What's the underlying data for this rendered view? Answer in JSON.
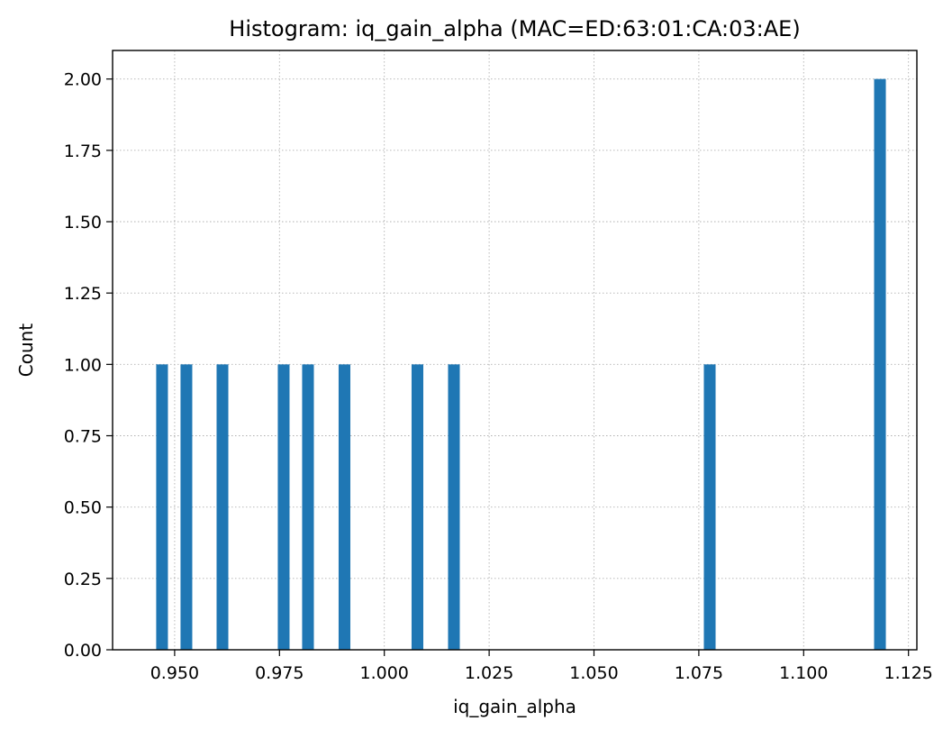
{
  "chart_data": {
    "type": "bar",
    "subtype": "histogram",
    "title": "Histogram: iq_gain_alpha (MAC=ED:63:01:CA:03:AE)",
    "xlabel": "iq_gain_alpha",
    "ylabel": "Count",
    "xlim": [
      0.9352,
      1.127
    ],
    "ylim": [
      0,
      2.1
    ],
    "xticks": [
      0.95,
      0.975,
      1.0,
      1.025,
      1.05,
      1.075,
      1.1,
      1.125
    ],
    "xtick_labels": [
      "0.950",
      "0.975",
      "1.000",
      "1.025",
      "1.050",
      "1.075",
      "1.100",
      "1.125"
    ],
    "yticks": [
      0,
      0.25,
      0.5,
      0.75,
      1.0,
      1.25,
      1.5,
      1.75,
      2.0
    ],
    "ytick_labels": [
      "0.00",
      "0.25",
      "0.50",
      "0.75",
      "1.00",
      "1.25",
      "1.50",
      "1.75",
      "2.00"
    ],
    "grid": true,
    "bar_color": "#1f77b4",
    "bins": [
      {
        "x0": 0.9456,
        "x1": 0.9484,
        "count": 1
      },
      {
        "x0": 0.9514,
        "x1": 0.9542,
        "count": 1
      },
      {
        "x0": 0.96,
        "x1": 0.9628,
        "count": 1
      },
      {
        "x0": 0.9746,
        "x1": 0.9774,
        "count": 1
      },
      {
        "x0": 0.9804,
        "x1": 0.9832,
        "count": 1
      },
      {
        "x0": 0.9891,
        "x1": 0.9919,
        "count": 1
      },
      {
        "x0": 1.0065,
        "x1": 1.0093,
        "count": 1
      },
      {
        "x0": 1.0152,
        "x1": 1.018,
        "count": 1
      },
      {
        "x0": 1.0762,
        "x1": 1.079,
        "count": 1
      },
      {
        "x0": 1.1168,
        "x1": 1.1196,
        "count": 2
      }
    ]
  }
}
